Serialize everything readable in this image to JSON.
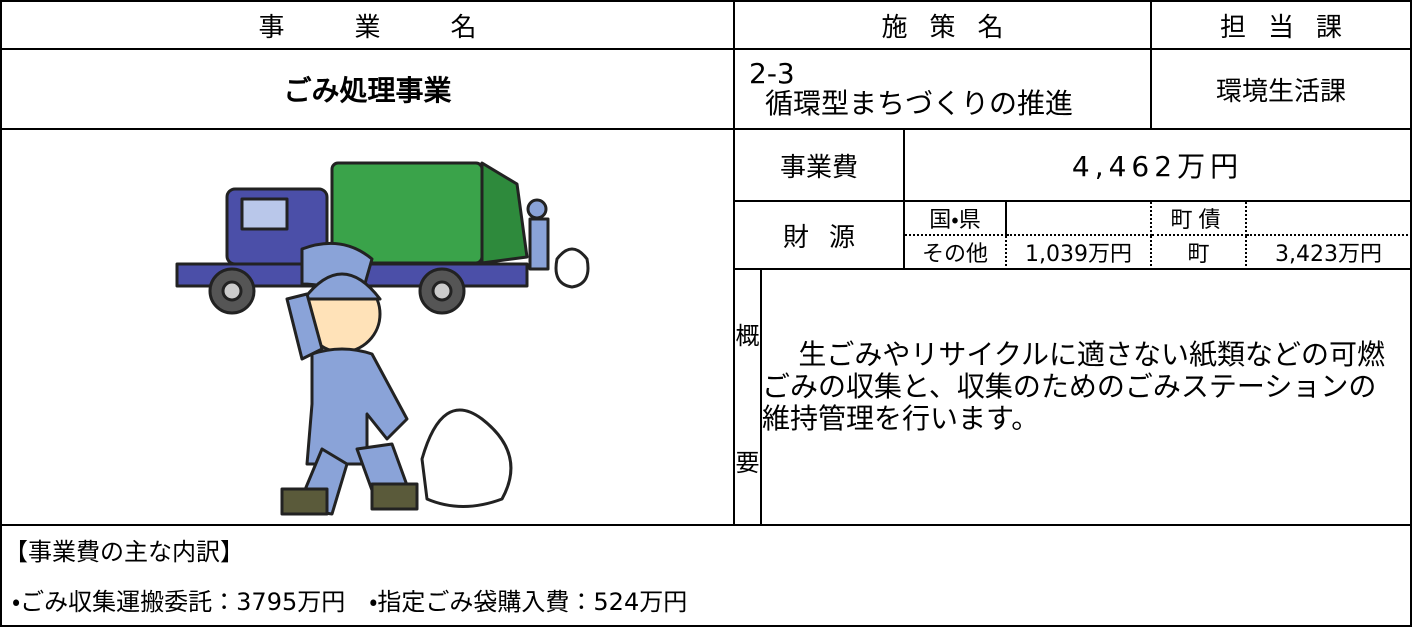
{
  "header": {
    "project": "事業名",
    "policy": "施策名",
    "department": "担当課"
  },
  "project_name": "ごみ処理事業",
  "policy": {
    "number": "2-3",
    "name": "循環型まちづくりの推進"
  },
  "department": "環境生活課",
  "cost": {
    "label": "事業費",
    "value": "4,462万円"
  },
  "funding": {
    "label": "財源",
    "national_prefectural": {
      "label": "国・県"
    },
    "municipal_bond": {
      "label": "町債"
    },
    "other": {
      "label": "その他",
      "value": "1,039万円"
    },
    "town": {
      "label": "町",
      "value": "3,423万円"
    }
  },
  "summary": {
    "label": [
      "概",
      "要"
    ],
    "text": "生ごみやリサイクルに適さない紙類などの可燃ごみの収集と、収集のためのごみステーションの維持管理を行います。"
  },
  "breakdown": {
    "title": "【事業費の主な内訳】",
    "items": [
      "・ごみ収集運搬委託：3795万円",
      "・指定ごみ袋購入費：524万円"
    ]
  }
}
